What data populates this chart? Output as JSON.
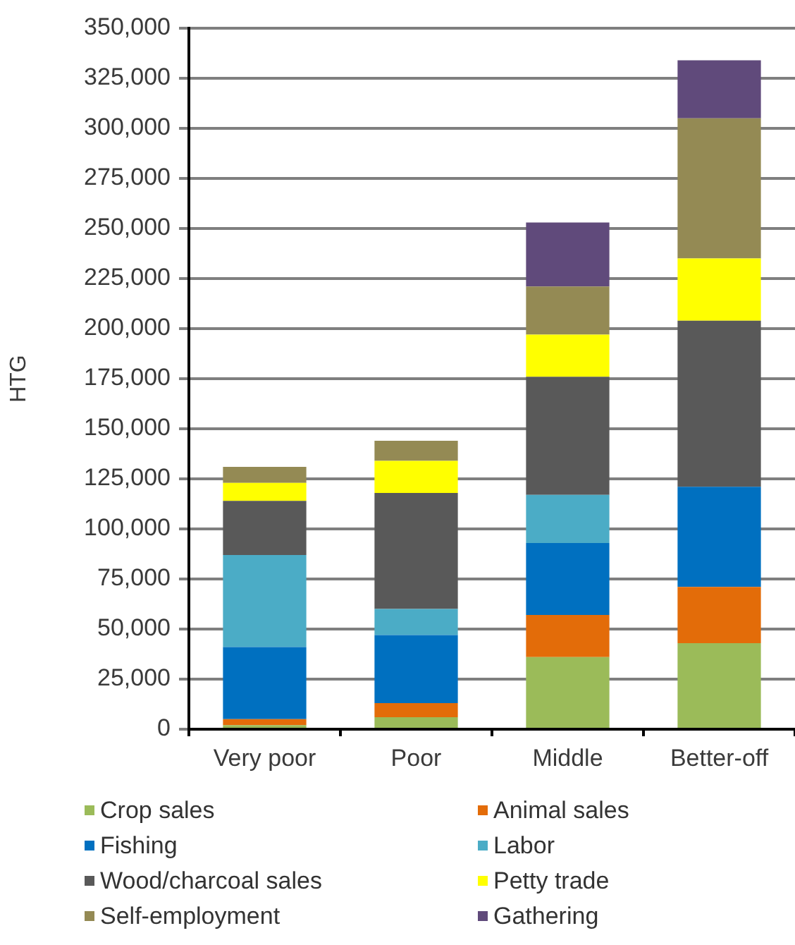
{
  "chart_data": {
    "type": "bar",
    "stacked": true,
    "ylabel": "HTG",
    "categories": [
      "Very poor",
      "Poor",
      "Middle",
      "Better-off"
    ],
    "series": [
      {
        "name": "Crop sales",
        "color": "#9bbb59",
        "values": [
          2000,
          6000,
          36000,
          43000
        ]
      },
      {
        "name": "Animal sales",
        "color": "#e36c09",
        "values": [
          3000,
          7000,
          21000,
          28000
        ]
      },
      {
        "name": "Fishing",
        "color": "#0070c0",
        "values": [
          36000,
          34000,
          36000,
          50000
        ]
      },
      {
        "name": "Labor",
        "color": "#4bacc6",
        "values": [
          46000,
          13000,
          24000,
          null
        ]
      },
      {
        "name": "Wood/charcoal sales",
        "color": "#595959",
        "values": [
          27000,
          58000,
          59000,
          83000
        ]
      },
      {
        "name": "Petty trade",
        "color": "#ffff00",
        "values": [
          9000,
          16000,
          21000,
          31000
        ]
      },
      {
        "name": "Self-employment",
        "color": "#948a54",
        "values": [
          8000,
          10000,
          24000,
          70000
        ]
      },
      {
        "name": "Gathering",
        "color": "#604a7b",
        "values": [
          null,
          null,
          32000,
          29000
        ]
      }
    ],
    "ylim": [
      0,
      350000
    ],
    "yticks": [
      0,
      {
        "value": 25000,
        "label": "25,000"
      },
      {
        "value": 50000,
        "label": "50,000"
      },
      {
        "value": 75000,
        "label": "75,000"
      },
      {
        "value": 100000,
        "label": "100,000"
      },
      {
        "value": 125000,
        "label": "125,000"
      },
      {
        "value": 150000,
        "label": "150,000"
      },
      {
        "value": 175000,
        "label": "175,000"
      },
      {
        "value": 200000,
        "label": "200,000"
      },
      {
        "value": 225000,
        "label": "225,000"
      },
      {
        "value": 250000,
        "label": "250,000"
      },
      {
        "value": 275000,
        "label": "275,000"
      },
      {
        "value": 300000,
        "label": "300,000"
      },
      {
        "value": 325000,
        "label": "325,000"
      },
      {
        "value": 350000,
        "label": "350,000"
      }
    ],
    "grid": "y",
    "legend": "bottom"
  }
}
